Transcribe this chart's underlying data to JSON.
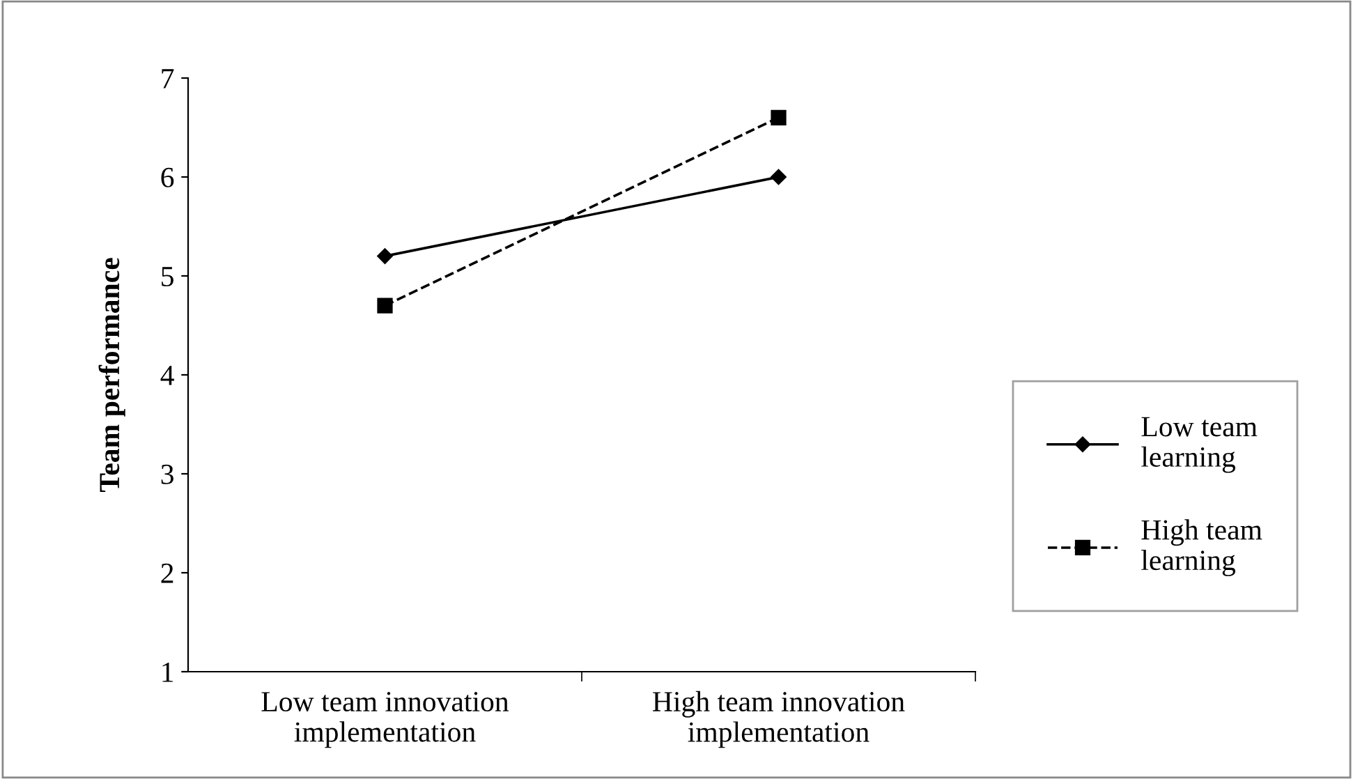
{
  "chart_data": {
    "type": "line",
    "categories": [
      "Low team innovation\nimplementation",
      "High team innovation\nimplementation"
    ],
    "ylabel": "Team performance",
    "series": [
      {
        "name": "Low team\nlearning",
        "color": "#000000",
        "values": [
          5.2,
          6.0
        ],
        "marker": "diamond",
        "line_style": "solid"
      },
      {
        "name": "High team\nlearning",
        "color": "#000000",
        "values": [
          4.7,
          6.6
        ],
        "marker": "square",
        "line_style": "dashed"
      }
    ],
    "ylim": [
      1,
      7
    ],
    "yticks": [
      1,
      2,
      3,
      4,
      5,
      6,
      7
    ],
    "grid": false,
    "legend": "right"
  }
}
